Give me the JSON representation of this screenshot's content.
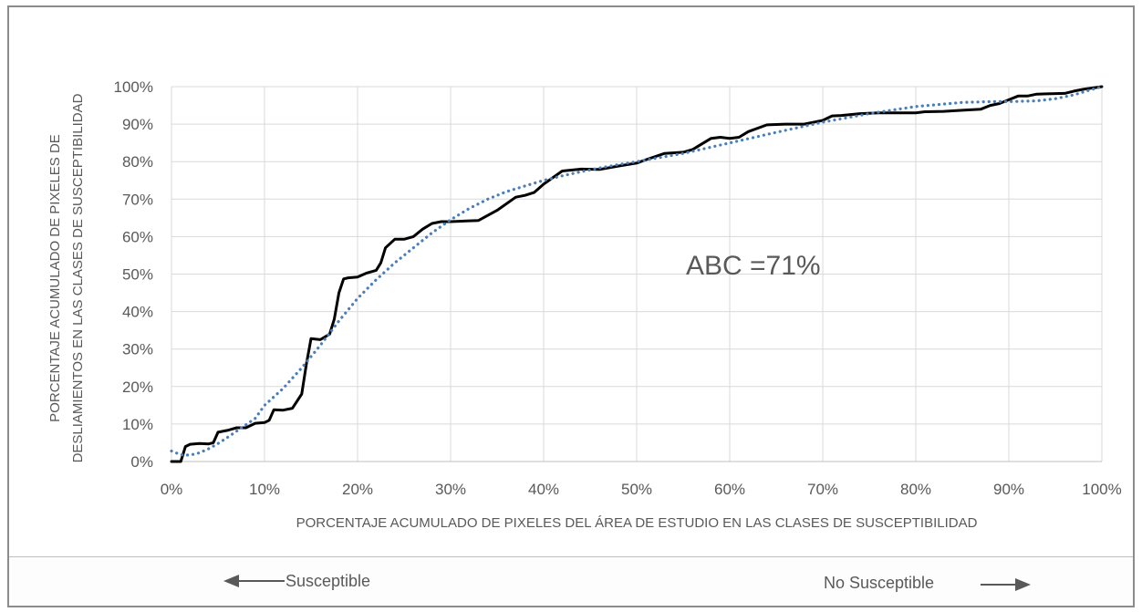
{
  "chart_data": {
    "type": "line",
    "xlabel": "PORCENTAJE ACUMULADO DE PIXELES DEL ÁREA DE ESTUDIO EN LAS CLASES DE SUSCEPTIBILIDAD",
    "ylabel": [
      "PORCENTAJE ACUMULADO DE PIXELES DE",
      "DESLIAMIENTOS EN LAS CLASES DE SUSCEPTIBILIDAD"
    ],
    "xlim": [
      0,
      100
    ],
    "ylim": [
      0,
      100
    ],
    "x_ticks": [
      "0%",
      "10%",
      "20%",
      "30%",
      "40%",
      "50%",
      "60%",
      "70%",
      "80%",
      "90%",
      "100%"
    ],
    "y_ticks": [
      "0%",
      "10%",
      "20%",
      "30%",
      "40%",
      "50%",
      "60%",
      "70%",
      "80%",
      "90%",
      "100%"
    ],
    "grid": true,
    "annotation": "ABC =71%",
    "series": [
      {
        "style": "solid",
        "color": "#000000",
        "points": [
          [
            0,
            0
          ],
          [
            1,
            0
          ],
          [
            1.5,
            4
          ],
          [
            2,
            4.6
          ],
          [
            3,
            4.8
          ],
          [
            4,
            4.7
          ],
          [
            4.5,
            5
          ],
          [
            5,
            7.8
          ],
          [
            6,
            8.3
          ],
          [
            7,
            9
          ],
          [
            8,
            9
          ],
          [
            9,
            10.2
          ],
          [
            10,
            10.4
          ],
          [
            10.5,
            11
          ],
          [
            11,
            13.8
          ],
          [
            12,
            13.7
          ],
          [
            13,
            14.2
          ],
          [
            14,
            18
          ],
          [
            14.5,
            26
          ],
          [
            15,
            32.8
          ],
          [
            16,
            32.5
          ],
          [
            17,
            34
          ],
          [
            17.5,
            38
          ],
          [
            18,
            45
          ],
          [
            18.5,
            48.7
          ],
          [
            19,
            49
          ],
          [
            20,
            49.2
          ],
          [
            21,
            50.3
          ],
          [
            22,
            51
          ],
          [
            22.5,
            53
          ],
          [
            23,
            57
          ],
          [
            24,
            59.3
          ],
          [
            25,
            59.3
          ],
          [
            26,
            60
          ],
          [
            27,
            62
          ],
          [
            28,
            63.5
          ],
          [
            29,
            64
          ],
          [
            30,
            64
          ],
          [
            33,
            64.3
          ],
          [
            35,
            67
          ],
          [
            37,
            70.5
          ],
          [
            38,
            71
          ],
          [
            39,
            71.8
          ],
          [
            40,
            74
          ],
          [
            42,
            77.5
          ],
          [
            44,
            78
          ],
          [
            46,
            77.9
          ],
          [
            48,
            78.8
          ],
          [
            50,
            79.6
          ],
          [
            51,
            80.5
          ],
          [
            53,
            82.2
          ],
          [
            55,
            82.5
          ],
          [
            56,
            83.2
          ],
          [
            58,
            86.2
          ],
          [
            59,
            86.5
          ],
          [
            60,
            86.2
          ],
          [
            61,
            86.5
          ],
          [
            62,
            88
          ],
          [
            64,
            89.8
          ],
          [
            66,
            90
          ],
          [
            68,
            90
          ],
          [
            70,
            91
          ],
          [
            71,
            92.2
          ],
          [
            72,
            92.3
          ],
          [
            74,
            92.8
          ],
          [
            76,
            93
          ],
          [
            80,
            93
          ],
          [
            81,
            93.3
          ],
          [
            83,
            93.4
          ],
          [
            85,
            93.7
          ],
          [
            87,
            94
          ],
          [
            88,
            95
          ],
          [
            89,
            95.5
          ],
          [
            90,
            96.5
          ],
          [
            91,
            97.5
          ],
          [
            92,
            97.5
          ],
          [
            93,
            98
          ],
          [
            96,
            98.2
          ],
          [
            97,
            98.8
          ],
          [
            98,
            99.3
          ],
          [
            100,
            100
          ]
        ]
      },
      {
        "style": "dotted",
        "color": "#4a7ebb",
        "points": [
          [
            0,
            2.8
          ],
          [
            1,
            1.8
          ],
          [
            2,
            1.7
          ],
          [
            3,
            2.3
          ],
          [
            4,
            3.4
          ],
          [
            5,
            4.8
          ],
          [
            6,
            6.4
          ],
          [
            7,
            8.1
          ],
          [
            8,
            9.8
          ],
          [
            9,
            11.5
          ],
          [
            10,
            15
          ],
          [
            12,
            19.5
          ],
          [
            14,
            25
          ],
          [
            16,
            31
          ],
          [
            18,
            37.5
          ],
          [
            20,
            43.5
          ],
          [
            22,
            48.5
          ],
          [
            24,
            53
          ],
          [
            26,
            57
          ],
          [
            28,
            61
          ],
          [
            30,
            64.5
          ],
          [
            32,
            67.5
          ],
          [
            34,
            70
          ],
          [
            36,
            72
          ],
          [
            38,
            73.5
          ],
          [
            40,
            75
          ],
          [
            42,
            76.2
          ],
          [
            44,
            77.3
          ],
          [
            46,
            78.3
          ],
          [
            48,
            79.2
          ],
          [
            50,
            80
          ],
          [
            55,
            82.2
          ],
          [
            60,
            85
          ],
          [
            65,
            87.8
          ],
          [
            70,
            90.5
          ],
          [
            75,
            92.8
          ],
          [
            80,
            94.7
          ],
          [
            85,
            95.8
          ],
          [
            88,
            96
          ],
          [
            90,
            96
          ],
          [
            93,
            96.2
          ],
          [
            95,
            96.8
          ],
          [
            97,
            97.8
          ],
          [
            99,
            99.3
          ],
          [
            100,
            100
          ]
        ]
      }
    ]
  },
  "footer": {
    "left_label": "Susceptible",
    "right_label": "No Susceptible"
  }
}
